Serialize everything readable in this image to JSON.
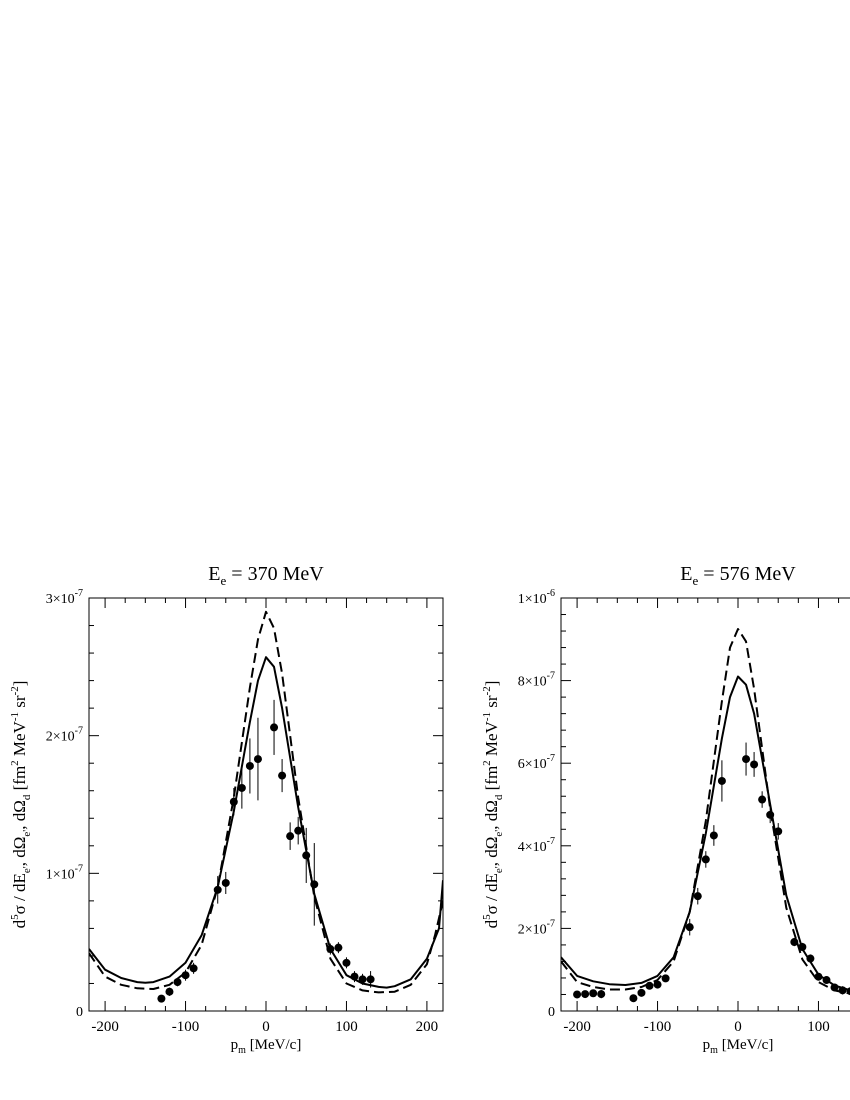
{
  "chart_data": [
    {
      "type": "line",
      "title": "E_e = 370 MeV",
      "title_main": "E",
      "title_sub": "e",
      "title_rest": " = 370 MeV",
      "xlabel_main": "p",
      "xlabel_sub": "m",
      "xlabel_rest": " [MeV/c]",
      "ylabel": "d^5σ / dE_e', dΩ_e', dΩ_d [fm^2 MeV^-1 sr^-2]",
      "xlim": [
        -220,
        220
      ],
      "ylim": [
        0,
        3e-07
      ],
      "xticks": [
        -200,
        -100,
        0,
        100,
        200
      ],
      "xtick_labels": [
        "-200",
        "-100",
        "0",
        "100",
        "200"
      ],
      "yticks": [
        0,
        1e-07,
        2e-07,
        3e-07
      ],
      "ytick_labels": [
        {
          "mant": "0",
          "exp": ""
        },
        {
          "mant": "1×10",
          "exp": "-7"
        },
        {
          "mant": "2×10",
          "exp": "-7"
        },
        {
          "mant": "3×10",
          "exp": "-7"
        }
      ],
      "grid": false,
      "series": [
        {
          "style": "solid",
          "x": [
            -220,
            -200,
            -180,
            -160,
            -150,
            -140,
            -120,
            -100,
            -80,
            -60,
            -40,
            -20,
            -10,
            0,
            10,
            20,
            40,
            60,
            80,
            100,
            120,
            140,
            150,
            160,
            180,
            200,
            215,
            220
          ],
          "y": [
            4.5e-08,
            3e-08,
            2.4e-08,
            2.1e-08,
            2.05e-08,
            2.1e-08,
            2.5e-08,
            3.5e-08,
            5.5e-08,
            9e-08,
            1.45e-07,
            2.1e-07,
            2.4e-07,
            2.57e-07,
            2.5e-07,
            2.2e-07,
            1.48e-07,
            8.5e-08,
            4.5e-08,
            2.6e-08,
            2e-08,
            1.75e-08,
            1.7e-08,
            1.8e-08,
            2.3e-08,
            3.8e-08,
            6e-08,
            9.5e-08
          ]
        },
        {
          "style": "dashed",
          "x": [
            -220,
            -200,
            -180,
            -160,
            -140,
            -120,
            -100,
            -80,
            -60,
            -40,
            -20,
            -10,
            0,
            10,
            20,
            40,
            60,
            80,
            100,
            120,
            140,
            160,
            180,
            200,
            210,
            220
          ],
          "y": [
            4.2e-08,
            2.5e-08,
            1.9e-08,
            1.65e-08,
            1.6e-08,
            1.9e-08,
            2.8e-08,
            4.8e-08,
            9e-08,
            1.55e-07,
            2.35e-07,
            2.7e-07,
            2.9e-07,
            2.78e-07,
            2.45e-07,
            1.55e-07,
            8.3e-08,
            3.8e-08,
            2e-08,
            1.5e-08,
            1.35e-08,
            1.4e-08,
            1.9e-08,
            3.4e-08,
            5.5e-08,
            8e-08
          ]
        },
        {
          "style": "points",
          "points": [
            {
              "x": -130,
              "y": 9e-09,
              "err": 0
            },
            {
              "x": -120,
              "y": 1.4e-08,
              "err": 3e-09
            },
            {
              "x": -110,
              "y": 2.1e-08,
              "err": 3e-09
            },
            {
              "x": -100,
              "y": 2.6e-08,
              "err": 4e-09
            },
            {
              "x": -90,
              "y": 3.1e-08,
              "err": 4e-09
            },
            {
              "x": -60,
              "y": 8.8e-08,
              "err": 1e-08
            },
            {
              "x": -50,
              "y": 9.3e-08,
              "err": 8e-09
            },
            {
              "x": -40,
              "y": 1.52e-07,
              "err": 1e-08
            },
            {
              "x": -30,
              "y": 1.62e-07,
              "err": 1.5e-08
            },
            {
              "x": -20,
              "y": 1.78e-07,
              "err": 2e-08
            },
            {
              "x": -10,
              "y": 1.83e-07,
              "err": 3e-08
            },
            {
              "x": 10,
              "y": 2.06e-07,
              "err": 2e-08
            },
            {
              "x": 20,
              "y": 1.71e-07,
              "err": 1.2e-08
            },
            {
              "x": 30,
              "y": 1.27e-07,
              "err": 1e-08
            },
            {
              "x": 40,
              "y": 1.31e-07,
              "err": 1e-08
            },
            {
              "x": 50,
              "y": 1.13e-07,
              "err": 2e-08
            },
            {
              "x": 60,
              "y": 9.2e-08,
              "err": 3e-08
            },
            {
              "x": 80,
              "y": 4.5e-08,
              "err": 4e-09
            },
            {
              "x": 90,
              "y": 4.6e-08,
              "err": 4e-09
            },
            {
              "x": 100,
              "y": 3.5e-08,
              "err": 4e-09
            },
            {
              "x": 110,
              "y": 2.5e-08,
              "err": 4e-09
            },
            {
              "x": 120,
              "y": 2.3e-08,
              "err": 4e-09
            },
            {
              "x": 130,
              "y": 2.3e-08,
              "err": 6e-09
            }
          ]
        }
      ]
    },
    {
      "type": "line",
      "title": "E_e = 576 MeV",
      "title_main": "E",
      "title_sub": "e",
      "title_rest": " = 576 MeV",
      "xlabel_main": "p",
      "xlabel_sub": "m",
      "xlabel_rest": " [MeV/c]",
      "ylabel": "d^5σ / dE_e', dΩ_e', dΩ_d [fm^2 MeV^-1 sr^-2]",
      "xlim": [
        -220,
        220
      ],
      "ylim": [
        0,
        1e-06
      ],
      "xticks": [
        -200,
        -100,
        0,
        100
      ],
      "xtick_labels": [
        "-200",
        "-100",
        "0",
        "100"
      ],
      "yticks": [
        0,
        2e-07,
        4e-07,
        6e-07,
        8e-07,
        1e-06
      ],
      "ytick_labels": [
        {
          "mant": "0",
          "exp": ""
        },
        {
          "mant": "2×10",
          "exp": "-7"
        },
        {
          "mant": "4×10",
          "exp": "-7"
        },
        {
          "mant": "6×10",
          "exp": "-7"
        },
        {
          "mant": "8×10",
          "exp": "-7"
        },
        {
          "mant": "1×10",
          "exp": "-6"
        }
      ],
      "grid": false,
      "series": [
        {
          "style": "solid",
          "x": [
            -220,
            -200,
            -180,
            -160,
            -140,
            -120,
            -100,
            -80,
            -60,
            -40,
            -20,
            -10,
            0,
            10,
            20,
            40,
            60,
            80,
            100,
            120,
            140
          ],
          "y": [
            1.3e-07,
            8.5e-08,
            7.2e-08,
            6.5e-08,
            6.3e-08,
            6.8e-08,
            8.5e-08,
            1.3e-07,
            2.4e-07,
            4.3e-07,
            6.6e-07,
            7.6e-07,
            8.1e-07,
            7.9e-07,
            7.2e-07,
            5e-07,
            2.8e-07,
            1.5e-07,
            8.8e-08,
            6.2e-08,
            5e-08
          ]
        },
        {
          "style": "dashed",
          "x": [
            -220,
            -200,
            -180,
            -160,
            -140,
            -120,
            -100,
            -80,
            -60,
            -40,
            -20,
            -10,
            0,
            10,
            20,
            40,
            60,
            80,
            100,
            120,
            140
          ],
          "y": [
            1.2e-07,
            7e-08,
            5.8e-08,
            5.2e-08,
            5.2e-08,
            5.8e-08,
            7.5e-08,
            1.2e-07,
            2.4e-07,
            4.6e-07,
            7.5e-07,
            8.8e-07,
            9.25e-07,
            8.95e-07,
            7.8e-07,
            4.9e-07,
            2.5e-07,
            1.25e-07,
            7e-08,
            5e-08,
            4.2e-08
          ]
        },
        {
          "style": "points",
          "points": [
            {
              "x": -200,
              "y": 4e-08,
              "err": 6e-09
            },
            {
              "x": -190,
              "y": 4.1e-08,
              "err": 6e-09
            },
            {
              "x": -180,
              "y": 4.3e-08,
              "err": 8e-09
            },
            {
              "x": -170,
              "y": 4.1e-08,
              "err": 1e-08
            },
            {
              "x": -130,
              "y": 3.1e-08,
              "err": 5e-09
            },
            {
              "x": -120,
              "y": 4.4e-08,
              "err": 5e-09
            },
            {
              "x": -110,
              "y": 6.1e-08,
              "err": 8e-09
            },
            {
              "x": -100,
              "y": 6.4e-08,
              "err": 8e-09
            },
            {
              "x": -90,
              "y": 7.9e-08,
              "err": 8e-09
            },
            {
              "x": -60,
              "y": 2.03e-07,
              "err": 2e-08
            },
            {
              "x": -50,
              "y": 2.78e-07,
              "err": 2e-08
            },
            {
              "x": -40,
              "y": 3.67e-07,
              "err": 2e-08
            },
            {
              "x": -30,
              "y": 4.25e-07,
              "err": 2.5e-08
            },
            {
              "x": -20,
              "y": 5.57e-07,
              "err": 5e-08
            },
            {
              "x": 10,
              "y": 6.1e-07,
              "err": 4e-08
            },
            {
              "x": 20,
              "y": 5.97e-07,
              "err": 3e-08
            },
            {
              "x": 30,
              "y": 5.12e-07,
              "err": 2e-08
            },
            {
              "x": 40,
              "y": 4.75e-07,
              "err": 2e-08
            },
            {
              "x": 50,
              "y": 4.35e-07,
              "err": 2e-08
            },
            {
              "x": 70,
              "y": 1.67e-07,
              "err": 1e-08
            },
            {
              "x": 80,
              "y": 1.55e-07,
              "err": 1e-08
            },
            {
              "x": 90,
              "y": 1.27e-07,
              "err": 1e-08
            },
            {
              "x": 100,
              "y": 8.3e-08,
              "err": 8e-09
            },
            {
              "x": 110,
              "y": 7.5e-08,
              "err": 8e-09
            },
            {
              "x": 120,
              "y": 5.7e-08,
              "err": 8e-09
            },
            {
              "x": 130,
              "y": 5e-08,
              "err": 1e-08
            },
            {
              "x": 140,
              "y": 4.8e-08,
              "err": 8e-09
            }
          ]
        }
      ]
    }
  ]
}
